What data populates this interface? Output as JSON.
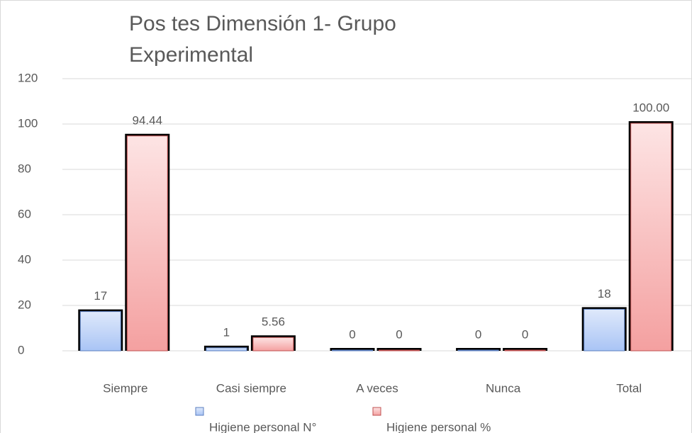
{
  "chart_data": {
    "type": "bar",
    "title": "Pos tes Dimensión 1- Grupo Experimental",
    "categories": [
      "Siempre",
      "Casi siempre",
      "A veces",
      "Nunca",
      "Total"
    ],
    "series": [
      {
        "name": "Higiene personal N°",
        "color": "#a9c4f5",
        "values": [
          17,
          1,
          0,
          0,
          18
        ]
      },
      {
        "name": "Higiene personal %",
        "color": "#f4a0a0",
        "values": [
          94.44,
          5.56,
          0,
          0,
          100
        ],
        "value_labels": [
          "94.44",
          "5.56",
          "0",
          "0",
          "100.00"
        ]
      }
    ],
    "ylim": [
      0,
      120
    ],
    "yticks": [
      0,
      20,
      40,
      60,
      80,
      100,
      120
    ],
    "grid": true,
    "legend": "bottom"
  }
}
